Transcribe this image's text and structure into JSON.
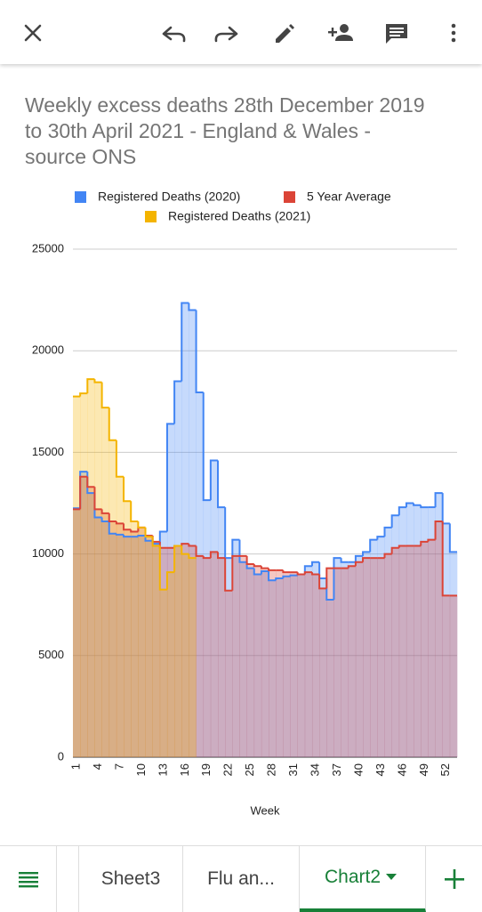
{
  "tabs": [
    "Sheet3",
    "Flu an...",
    "Chart2"
  ],
  "chart_data": {
    "type": "stepped-area",
    "title": "Weekly excess deaths 28th December 2019 to 30th April 2021 - England & Wales - source ONS",
    "x_label": "Week",
    "categories": [
      1,
      null,
      null,
      4,
      null,
      null,
      7,
      null,
      null,
      10,
      null,
      null,
      13,
      null,
      null,
      16,
      null,
      null,
      19,
      null,
      null,
      22,
      null,
      null,
      25,
      null,
      null,
      28,
      null,
      null,
      31,
      null,
      null,
      34,
      null,
      null,
      37,
      null,
      null,
      40,
      null,
      null,
      43,
      null,
      null,
      46,
      null,
      null,
      49,
      null,
      null,
      52,
      null
    ],
    "series": [
      {
        "name": "Registered Deaths (2020)",
        "color": "#4285f4",
        "values": [
          12250,
          14050,
          13000,
          11800,
          11600,
          11000,
          10950,
          10850,
          10850,
          10900,
          10650,
          10500,
          11100,
          16400,
          18500,
          22350,
          22000,
          17950,
          12650,
          14600,
          12300,
          9800,
          10700,
          9600,
          9300,
          9000,
          9150,
          8700,
          8800,
          8900,
          8950,
          9000,
          9400,
          9600,
          8800,
          7750,
          9800,
          9600,
          9600,
          9900,
          10100,
          10700,
          10850,
          11300,
          11900,
          12300,
          12500,
          12400,
          12300,
          12300,
          13000,
          11500,
          10100
        ]
      },
      {
        "name": "5 Year Average",
        "color": "#db4437",
        "values": [
          12200,
          13800,
          13300,
          12200,
          12000,
          11600,
          11500,
          11200,
          11100,
          11300,
          10900,
          10600,
          10300,
          10300,
          10400,
          10500,
          10400,
          9900,
          9800,
          10100,
          9800,
          8200,
          9900,
          9900,
          9500,
          9400,
          9300,
          9200,
          9200,
          9100,
          9100,
          9000,
          9100,
          9000,
          8300,
          9300,
          9300,
          9300,
          9400,
          9600,
          9800,
          9800,
          9800,
          10000,
          10300,
          10400,
          10400,
          10400,
          10600,
          10700,
          11600,
          7950,
          7950
        ]
      },
      {
        "name": "Registered Deaths (2021)",
        "color": "#f4b400",
        "values": [
          17750,
          17900,
          18600,
          18450,
          17200,
          15600,
          13800,
          12600,
          11600,
          11300,
          10850,
          10400,
          8250,
          9100,
          10400,
          10000,
          9800,
          null,
          null,
          null,
          null,
          null,
          null,
          null,
          null,
          null,
          null,
          null,
          null,
          null,
          null,
          null,
          null,
          null,
          null,
          null,
          null,
          null,
          null,
          null,
          null,
          null,
          null,
          null,
          null,
          null,
          null,
          null,
          null,
          null,
          null,
          null,
          null
        ]
      }
    ],
    "ylim": [
      0,
      25000
    ],
    "yticks": [
      0,
      5000,
      10000,
      15000,
      20000,
      25000
    ],
    "grid": true,
    "legend": "top"
  }
}
